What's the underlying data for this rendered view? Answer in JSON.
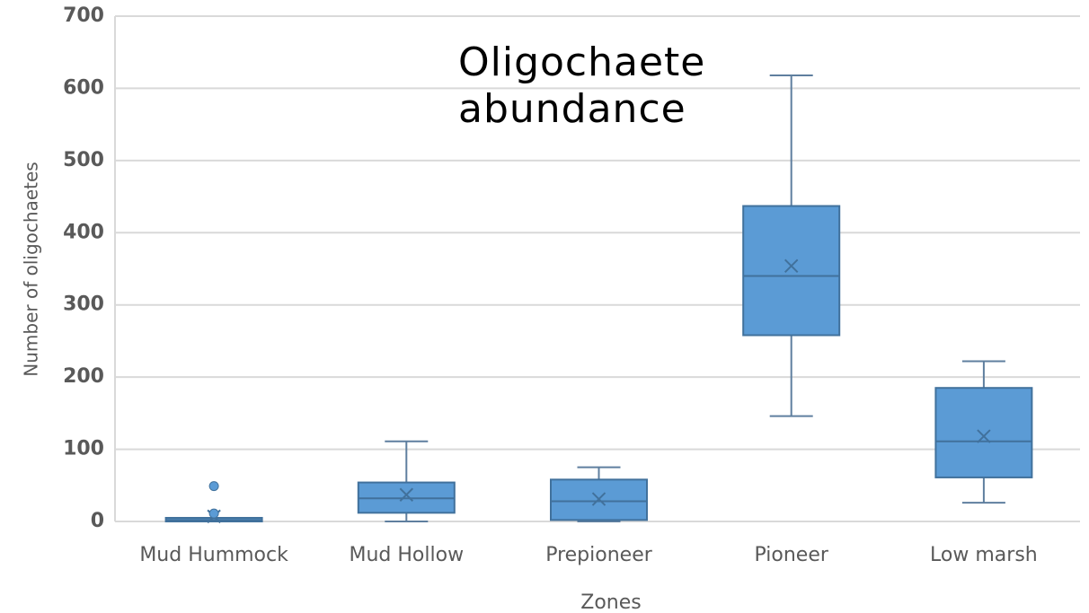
{
  "chart_data": {
    "type": "box",
    "title": "Oligochaete abundance",
    "x_label": "Zones",
    "y_label": "Number of  oligochaetes",
    "categories": [
      "Mud Hummock",
      "Mud Hollow",
      "Prepioneer",
      "Pioneer",
      "Low marsh"
    ],
    "min": [
      0,
      0,
      0,
      146,
      26
    ],
    "q1": [
      0,
      12,
      2,
      258,
      61
    ],
    "median": [
      2,
      32,
      28,
      340,
      111
    ],
    "q3": [
      5,
      54,
      58,
      437,
      185
    ],
    "max": [
      5,
      111,
      75,
      618,
      222
    ],
    "mean": [
      7,
      37,
      31,
      354,
      118
    ],
    "outliers": [
      [
        49,
        11
      ],
      [],
      [],
      [],
      []
    ],
    "color": "#5b9bd5",
    "ylim": [
      0,
      700
    ],
    "yticks": [
      0,
      100,
      200,
      300,
      400,
      500,
      600,
      700
    ],
    "grid": true
  }
}
